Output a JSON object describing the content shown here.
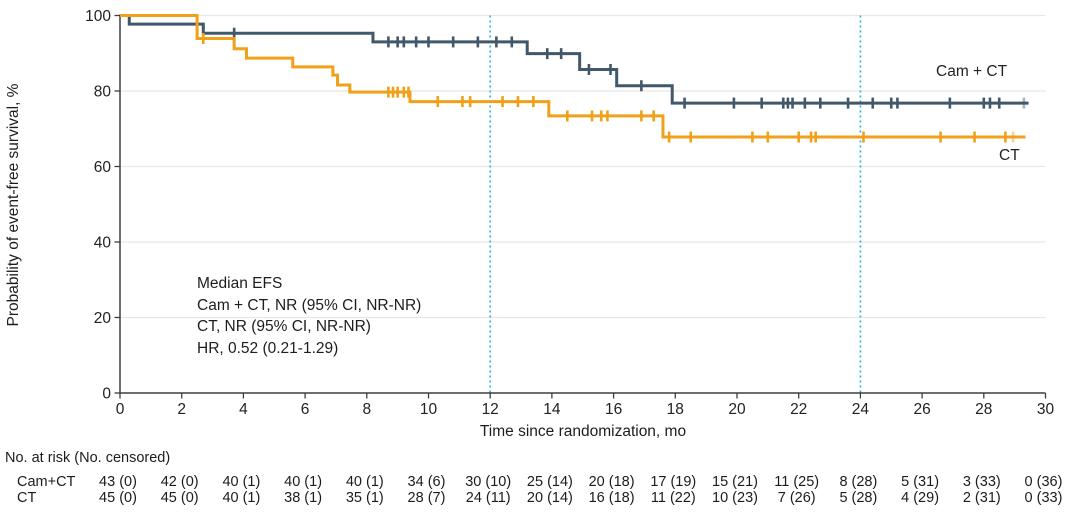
{
  "figure": {
    "curve_labels": {
      "cam_ct": "Cam + CT",
      "ct": "CT"
    },
    "annotation": {
      "line1": "Median EFS",
      "line2": "Cam + CT, NR (95% CI, NR-NR)",
      "line3": "CT, NR (95% CI, NR-NR)",
      "line4": "HR, 0.52 (0.21-1.29)"
    }
  },
  "colors": {
    "cam_ct": "#41586b",
    "ct": "#f0a019",
    "reference": "#2fb3e8",
    "grid": "#e8e8e8",
    "axis": "#3f3f3f",
    "text": "#222222"
  },
  "chart_data": {
    "type": "line",
    "subtype": "kaplan-meier-step",
    "title": "",
    "xlabel": "Time since randomization, mo",
    "ylabel": "Probability of event-free survival, %",
    "xlim": [
      0,
      30
    ],
    "ylim": [
      0,
      100
    ],
    "x_ticks": [
      0,
      2,
      4,
      6,
      8,
      10,
      12,
      14,
      16,
      18,
      20,
      22,
      24,
      26,
      28,
      30
    ],
    "y_ticks": [
      0,
      20,
      40,
      60,
      80,
      100
    ],
    "grid": "horizontal",
    "legend_position": "inline-right",
    "reference_lines": [
      {
        "x": 12
      },
      {
        "x": 24
      }
    ],
    "series": [
      {
        "id": "cam-ct",
        "name": "Cam + CT",
        "color": "#41586b",
        "steps": [
          [
            0,
            100
          ],
          [
            0.3,
            97.7
          ],
          [
            2.7,
            95.3
          ],
          [
            8.2,
            93.0
          ],
          [
            13.2,
            89.9
          ],
          [
            14.9,
            85.7
          ],
          [
            16.1,
            81.4
          ],
          [
            17.9,
            76.8
          ]
        ],
        "end": 29.45,
        "censors": [
          [
            3.7,
            95.3
          ],
          [
            8.7,
            93.0
          ],
          [
            9.0,
            93.0
          ],
          [
            9.2,
            93.0
          ],
          [
            9.6,
            93.0
          ],
          [
            10.0,
            93.0
          ],
          [
            10.8,
            93.0
          ],
          [
            11.6,
            93.0
          ],
          [
            12.2,
            93.0
          ],
          [
            12.7,
            93.0
          ],
          [
            13.85,
            89.9
          ],
          [
            14.3,
            89.9
          ],
          [
            15.2,
            85.7
          ],
          [
            15.9,
            85.7
          ],
          [
            16.9,
            81.4
          ],
          [
            18.3,
            76.8
          ],
          [
            19.9,
            76.8
          ],
          [
            20.8,
            76.8
          ],
          [
            21.5,
            76.8
          ],
          [
            21.65,
            76.8
          ],
          [
            21.8,
            76.8
          ],
          [
            22.2,
            76.8
          ],
          [
            22.7,
            76.8
          ],
          [
            23.6,
            76.8
          ],
          [
            24.4,
            76.8
          ],
          [
            25.0,
            76.8
          ],
          [
            25.2,
            76.8
          ],
          [
            26.9,
            76.8
          ],
          [
            28.0,
            76.8
          ],
          [
            28.2,
            76.8
          ],
          [
            28.5,
            76.8
          ],
          [
            29.3,
            76.8,
            "faint"
          ]
        ]
      },
      {
        "id": "ct",
        "name": "CT",
        "color": "#f0a019",
        "steps": [
          [
            0,
            100
          ],
          [
            2.5,
            93.9
          ],
          [
            3.7,
            91.2
          ],
          [
            4.1,
            88.7
          ],
          [
            5.6,
            86.4
          ],
          [
            6.9,
            84.2
          ],
          [
            7.05,
            81.6
          ],
          [
            7.45,
            79.7
          ],
          [
            9.4,
            77.2
          ],
          [
            13.9,
            73.4
          ],
          [
            17.6,
            67.8
          ]
        ],
        "end": 29.35,
        "censors": [
          [
            2.7,
            93.9
          ],
          [
            8.7,
            79.7
          ],
          [
            8.85,
            79.7
          ],
          [
            9.0,
            79.7
          ],
          [
            9.2,
            79.7
          ],
          [
            9.35,
            79.7
          ],
          [
            10.3,
            77.2
          ],
          [
            11.1,
            77.2
          ],
          [
            11.35,
            77.2
          ],
          [
            12.4,
            77.2
          ],
          [
            12.9,
            77.2
          ],
          [
            13.4,
            77.2
          ],
          [
            14.5,
            73.4
          ],
          [
            15.3,
            73.4
          ],
          [
            15.6,
            73.4
          ],
          [
            15.8,
            73.4
          ],
          [
            16.9,
            73.4
          ],
          [
            17.3,
            73.4
          ],
          [
            17.8,
            67.8
          ],
          [
            18.5,
            67.8
          ],
          [
            20.5,
            67.8
          ],
          [
            21.0,
            67.8
          ],
          [
            22.0,
            67.8
          ],
          [
            22.4,
            67.8
          ],
          [
            22.55,
            67.8
          ],
          [
            24.1,
            67.8
          ],
          [
            26.6,
            67.8
          ],
          [
            27.7,
            67.8
          ],
          [
            28.7,
            67.8
          ],
          [
            28.95,
            67.8,
            "faint"
          ]
        ]
      }
    ]
  },
  "risk_table": {
    "header": "No. at risk (No. censored)",
    "times": [
      0,
      2,
      4,
      6,
      8,
      10,
      12,
      14,
      16,
      18,
      20,
      22,
      24,
      26,
      28,
      30
    ],
    "rows": [
      {
        "label": "Cam+CT",
        "values": [
          "43 (0)",
          "42 (0)",
          "40 (1)",
          "40 (1)",
          "40 (1)",
          "34 (6)",
          "30 (10)",
          "25 (14)",
          "20 (18)",
          "17 (19)",
          "15 (21)",
          "11 (25)",
          "8 (28)",
          "5 (31)",
          "3 (33)",
          "0 (36)"
        ]
      },
      {
        "label": "CT",
        "values": [
          "45 (0)",
          "45 (0)",
          "40 (1)",
          "38 (1)",
          "35 (1)",
          "28 (7)",
          "24 (11)",
          "20 (14)",
          "16 (18)",
          "11 (22)",
          "10 (23)",
          "7 (26)",
          "5 (28)",
          "4 (29)",
          "2 (31)",
          "0 (33)"
        ]
      }
    ]
  }
}
